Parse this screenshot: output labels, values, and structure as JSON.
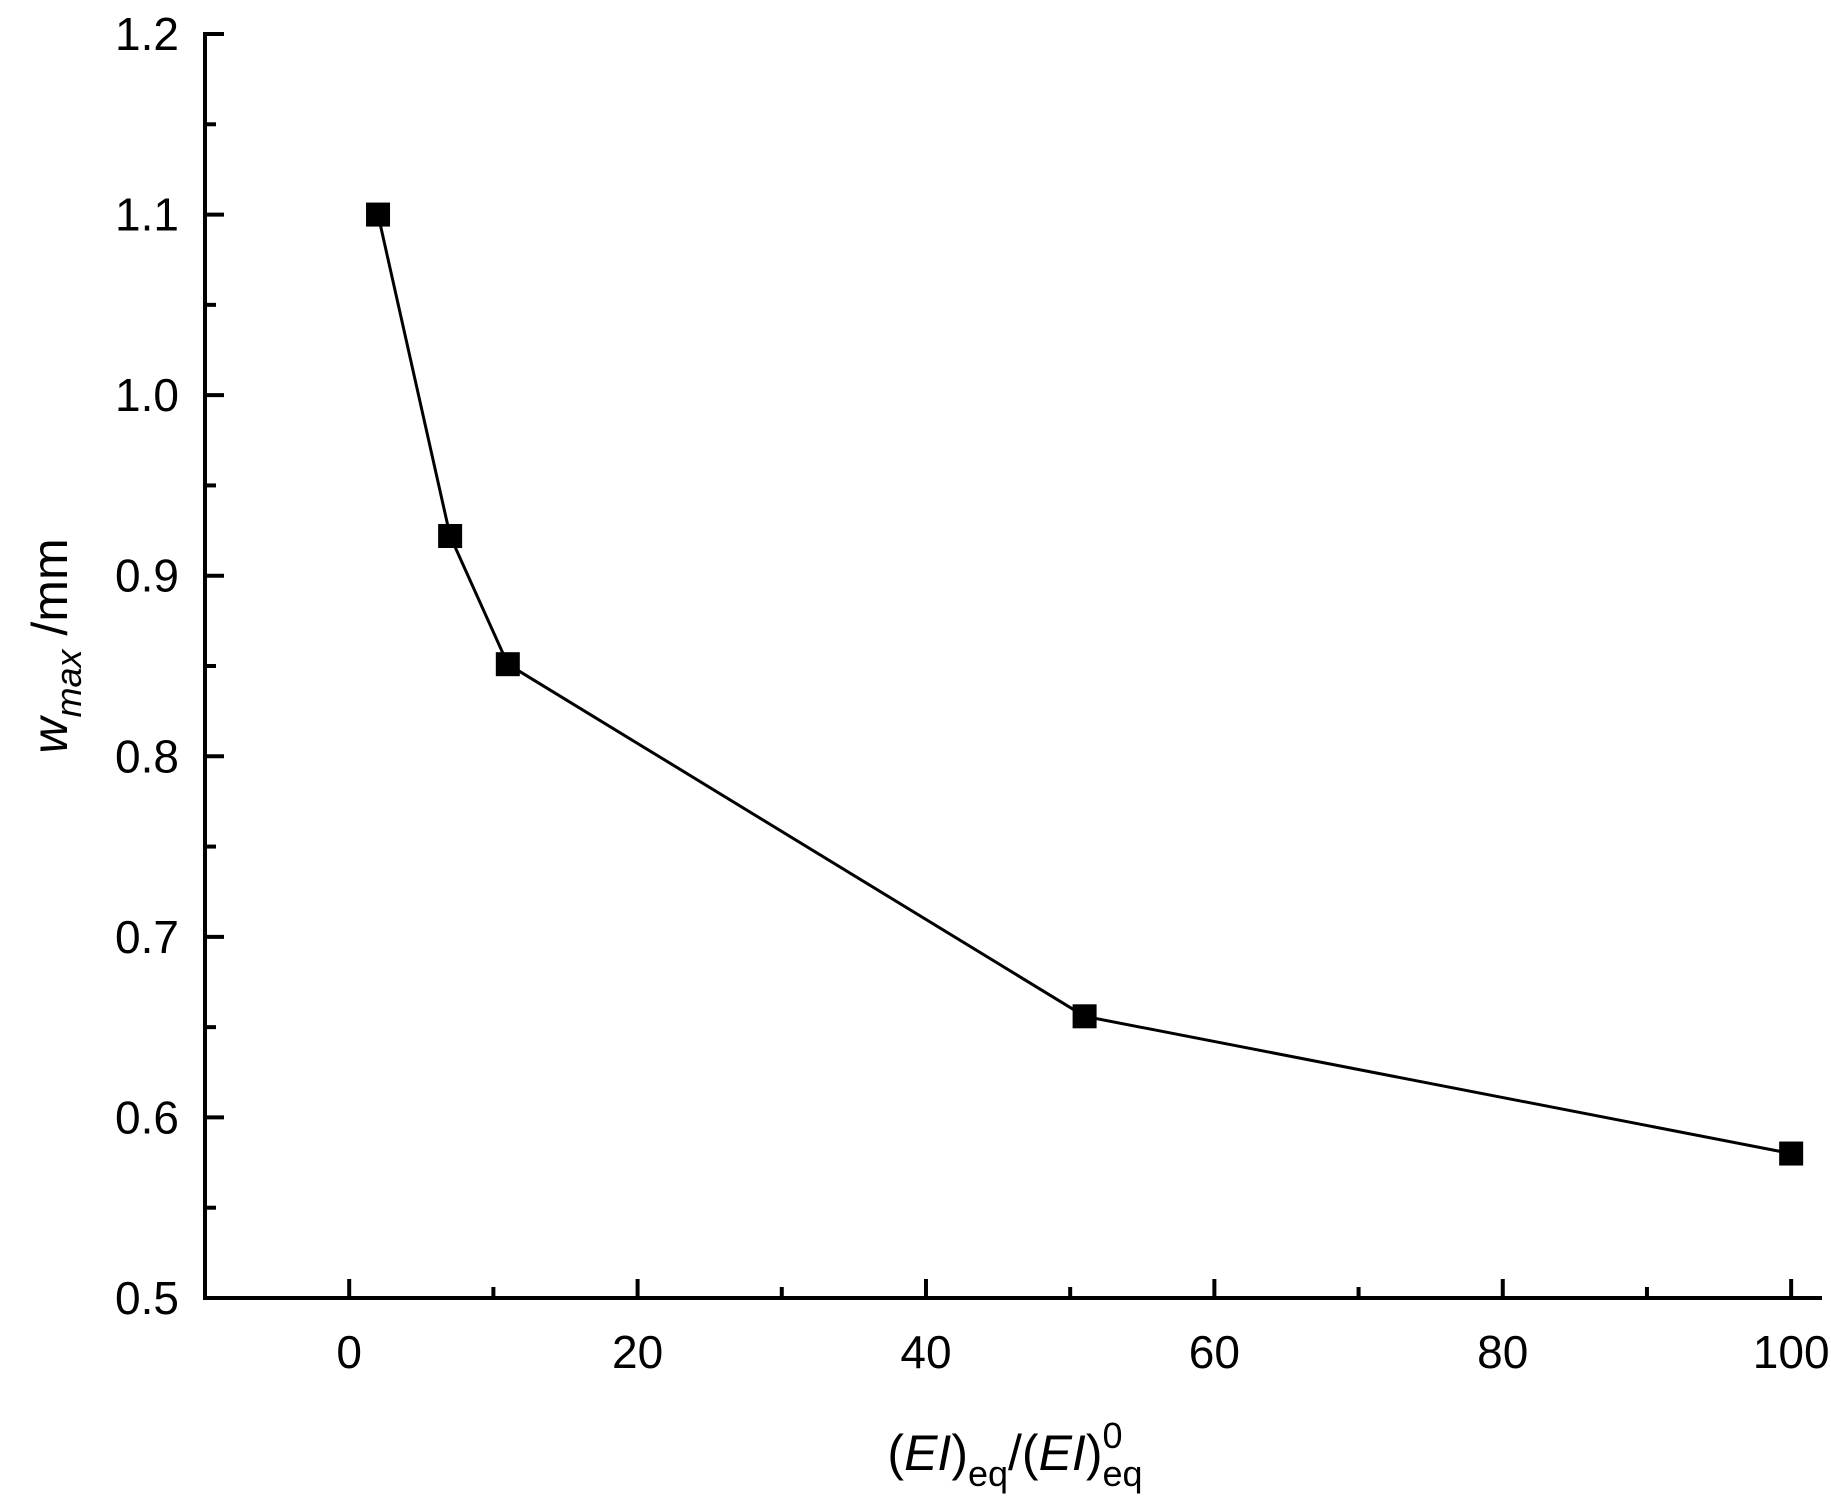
{
  "chart_data": {
    "type": "line",
    "title": "",
    "xlabel": {
      "open": "(",
      "var1": "EI",
      "close1": ")",
      "sub1": "eq",
      "slash": "/(",
      "var2": "EI",
      "close2": ")",
      "sup2": "0",
      "sub2": "eq"
    },
    "ylabel": {
      "var": "w",
      "sub": "max",
      "unit": " /mm"
    },
    "xlim": [
      -10,
      102
    ],
    "ylim": [
      0.5,
      1.2
    ],
    "xticks": [
      0,
      20,
      40,
      60,
      80,
      100
    ],
    "xtick_labels": [
      "0",
      "20",
      "40",
      "60",
      "80",
      "100"
    ],
    "yticks": [
      0.5,
      0.6,
      0.7,
      0.8,
      0.9,
      1.0,
      1.1,
      1.2
    ],
    "ytick_labels": [
      "0.5",
      "0.6",
      "0.7",
      "0.8",
      "0.9",
      "1.0",
      "1.1",
      "1.2"
    ],
    "grid": false,
    "legend": "none",
    "series": [
      {
        "marker": "square",
        "color": "#000000",
        "x": [
          2,
          7,
          11,
          51,
          100
        ],
        "y": [
          1.1,
          0.922,
          0.851,
          0.656,
          0.58
        ]
      }
    ]
  }
}
